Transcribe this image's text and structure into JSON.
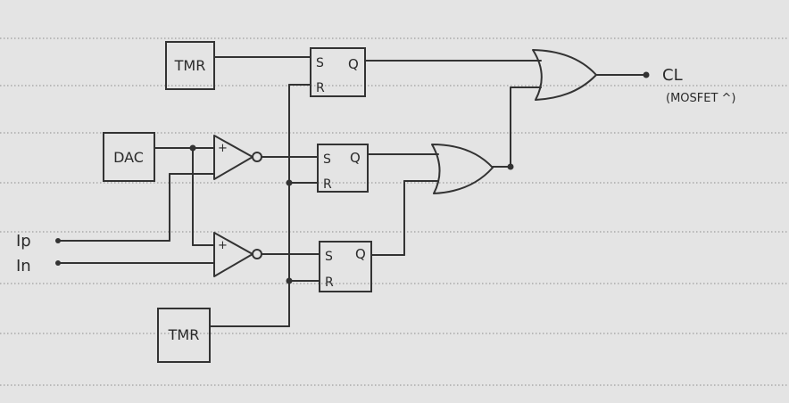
{
  "blocks": {
    "tmr_top": "TMR",
    "tmr_bottom": "TMR",
    "dac": "DAC"
  },
  "flipflops": {
    "ff1": {
      "s": "S",
      "r": "R",
      "q": "Q"
    },
    "ff2": {
      "s": "S",
      "r": "R",
      "q": "Q"
    },
    "ff3": {
      "s": "S",
      "r": "R",
      "q": "Q"
    }
  },
  "comparators": {
    "comp1": {
      "plus": "+"
    },
    "comp2": {
      "plus": "+"
    }
  },
  "inputs": {
    "ip": "Ip",
    "in": "In"
  },
  "output": {
    "label": "CL",
    "note": "(MOSFET ^)"
  }
}
